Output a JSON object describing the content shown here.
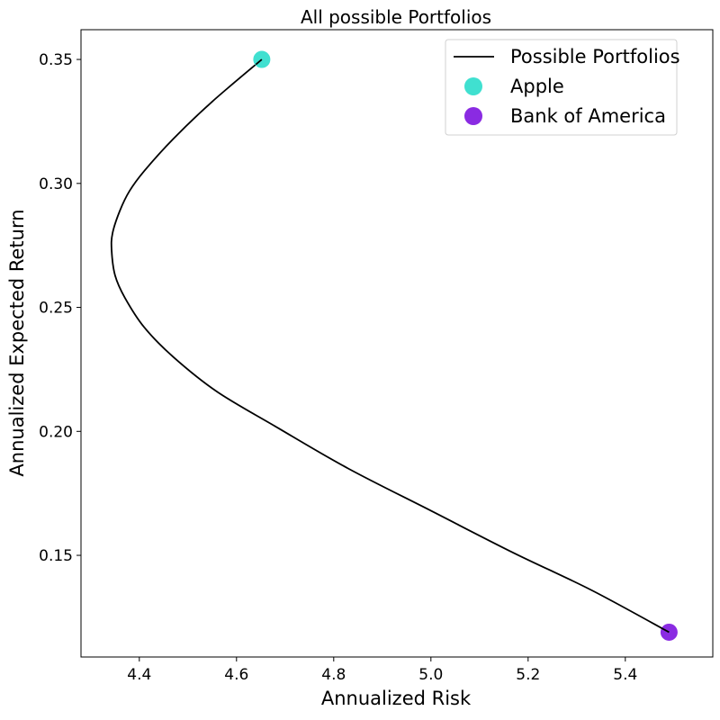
{
  "chart_data": {
    "type": "line",
    "title": "All possible Portfolios",
    "xlabel": "Annualized Risk",
    "ylabel": "Annualized Expected Return",
    "xlim": [
      4.28,
      5.58
    ],
    "ylim": [
      0.109,
      0.362
    ],
    "xticks": [
      4.4,
      4.6,
      4.8,
      5.0,
      5.2,
      5.4
    ],
    "xtick_labels": [
      "4.4",
      "4.6",
      "4.8",
      "5.0",
      "5.2",
      "5.4"
    ],
    "yticks": [
      0.15,
      0.2,
      0.25,
      0.3,
      0.35
    ],
    "ytick_labels": [
      "0.15",
      "0.20",
      "0.25",
      "0.30",
      "0.35"
    ],
    "grid": false,
    "legend_position": "top-right",
    "series": [
      {
        "name": "Possible Portfolios",
        "kind": "line",
        "color": "#000000",
        "x": [
          4.652,
          4.55,
          4.47,
          4.41,
          4.38,
          4.36,
          4.345,
          4.343,
          4.35,
          4.37,
          4.41,
          4.47,
          4.56,
          4.68,
          4.83,
          5.0,
          5.17,
          5.33,
          5.49
        ],
        "y": [
          0.35,
          0.333,
          0.318,
          0.305,
          0.297,
          0.289,
          0.28,
          0.273,
          0.263,
          0.254,
          0.242,
          0.23,
          0.216,
          0.202,
          0.185,
          0.168,
          0.151,
          0.136,
          0.119
        ]
      },
      {
        "name": "Apple",
        "kind": "scatter",
        "color": "#40E0D0",
        "x": [
          4.652
        ],
        "y": [
          0.35
        ]
      },
      {
        "name": "Bank of America",
        "kind": "scatter",
        "color": "#8A2BE2",
        "x": [
          5.49
        ],
        "y": [
          0.119
        ]
      }
    ]
  }
}
